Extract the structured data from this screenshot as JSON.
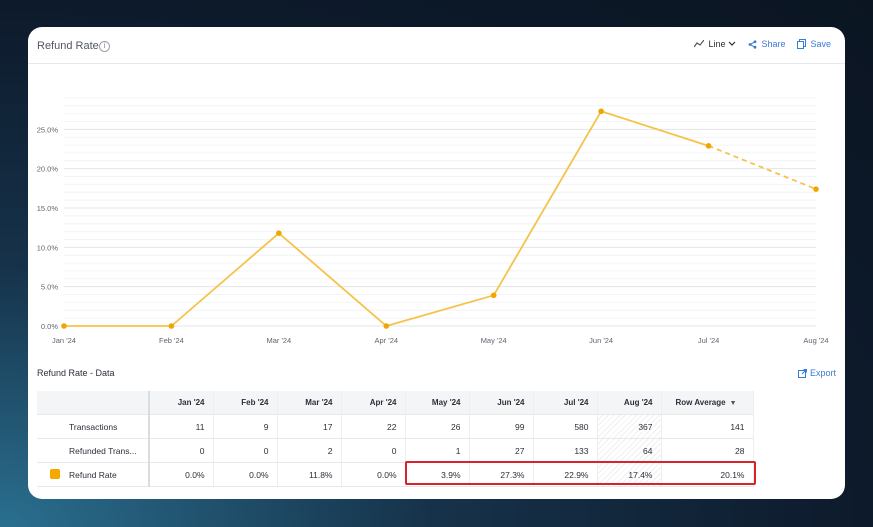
{
  "header": {
    "title": "Refund Rate",
    "info_icon": "info-icon",
    "chart_type_label": "Line",
    "share_label": "Share",
    "save_label": "Save"
  },
  "colors": {
    "series": "#f5c34a",
    "marker": "#f0a500",
    "link": "#3a7bd5",
    "highlight": "#d8232a"
  },
  "chart_data": {
    "type": "line",
    "categories": [
      "Jan '24",
      "Feb '24",
      "Mar '24",
      "Apr '24",
      "May '24",
      "Jun '24",
      "Jul '24",
      "Aug '24"
    ],
    "series": [
      {
        "name": "Refund Rate",
        "values": [
          0.0,
          0.0,
          11.8,
          0.0,
          3.9,
          27.3,
          22.9,
          17.4
        ]
      }
    ],
    "forecast_from_index": 6,
    "y_ticks": [
      "0.0%",
      "5.0%",
      "10.0%",
      "15.0%",
      "20.0%",
      "25.0%"
    ],
    "ylim": [
      0,
      30
    ],
    "grid": true,
    "xlabel": "",
    "ylabel": ""
  },
  "table": {
    "section_title": "Refund Rate - Data",
    "export_label": "Export",
    "columns": [
      "Jan '24",
      "Feb '24",
      "Mar '24",
      "Apr '24",
      "May '24",
      "Jun '24",
      "Jul '24",
      "Aug '24"
    ],
    "avg_label": "Row Average",
    "rows": [
      {
        "label": "Transactions",
        "values": [
          "11",
          "9",
          "17",
          "22",
          "26",
          "99",
          "580",
          "367"
        ],
        "avg": "141"
      },
      {
        "label": "Refunded Trans...",
        "values": [
          "0",
          "0",
          "2",
          "0",
          "1",
          "27",
          "133",
          "64"
        ],
        "avg": "28"
      },
      {
        "label": "Refund Rate",
        "values": [
          "0.0%",
          "0.0%",
          "11.8%",
          "0.0%",
          "3.9%",
          "27.3%",
          "22.9%",
          "17.4%"
        ],
        "avg": "20.1%"
      }
    ]
  }
}
